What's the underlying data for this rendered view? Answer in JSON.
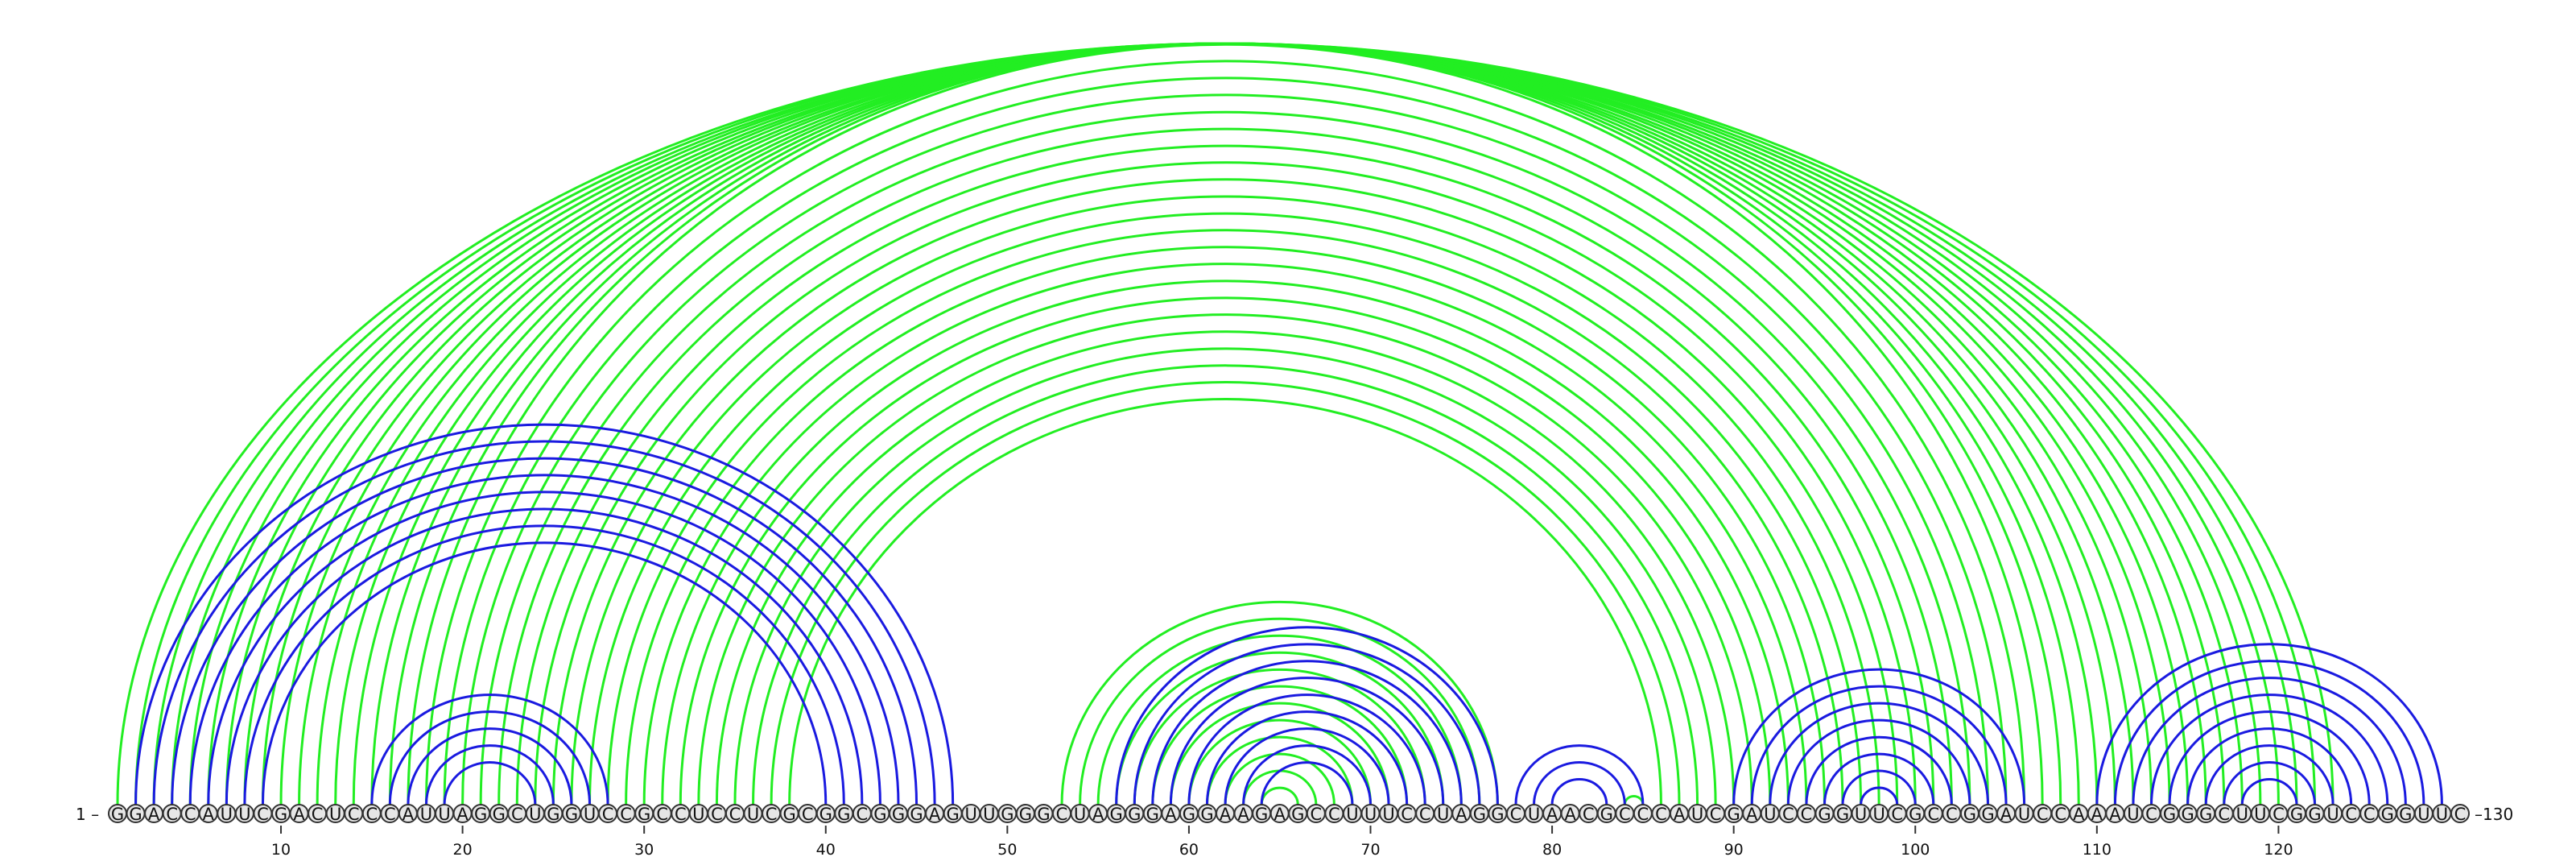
{
  "sequence": "GGACCAUUCGACUCCCAUUAGGCUGGUCCGCCUCCUCGCGGCGGGAGUUGGGCUAGGGAGGAAGAGCCUUUCCUAGGCUAACGCCCAUCGAUCCGGUUCGCCGGAUCCAAAUCGGGCUUCGGUCCGGUUC",
  "start_label": "1",
  "end_label": "130",
  "ticks": [
    "10",
    "20",
    "30",
    "40",
    "50",
    "60",
    "70",
    "80",
    "90",
    "100",
    "110",
    "120"
  ],
  "colors": {
    "blue": "#1a1ae0",
    "green": "#22ee22"
  },
  "arcs": {
    "blue": [
      [
        2,
        47
      ],
      [
        3,
        46
      ],
      [
        4,
        45
      ],
      [
        5,
        44
      ],
      [
        6,
        43
      ],
      [
        7,
        42
      ],
      [
        8,
        41
      ],
      [
        9,
        40
      ],
      [
        15,
        28
      ],
      [
        16,
        27
      ],
      [
        17,
        26
      ],
      [
        18,
        25
      ],
      [
        19,
        24
      ],
      [
        56,
        77
      ],
      [
        57,
        76
      ],
      [
        58,
        75
      ],
      [
        59,
        74
      ],
      [
        60,
        73
      ],
      [
        61,
        72
      ],
      [
        62,
        71
      ],
      [
        63,
        70
      ],
      [
        64,
        69
      ],
      [
        78,
        85
      ],
      [
        79,
        84
      ],
      [
        80,
        83
      ],
      [
        90,
        106
      ],
      [
        91,
        105
      ],
      [
        92,
        104
      ],
      [
        93,
        103
      ],
      [
        94,
        102
      ],
      [
        95,
        101
      ],
      [
        96,
        100
      ],
      [
        97,
        99
      ],
      [
        110,
        129
      ],
      [
        111,
        128
      ],
      [
        112,
        127
      ],
      [
        113,
        126
      ],
      [
        114,
        125
      ],
      [
        115,
        124
      ],
      [
        116,
        123
      ],
      [
        117,
        122
      ],
      [
        118,
        121
      ]
    ],
    "green": [
      [
        1,
        123
      ],
      [
        2,
        122
      ],
      [
        3,
        121
      ],
      [
        4,
        120
      ],
      [
        5,
        119
      ],
      [
        6,
        118
      ],
      [
        7,
        117
      ],
      [
        8,
        116
      ],
      [
        9,
        115
      ],
      [
        10,
        114
      ],
      [
        11,
        113
      ],
      [
        12,
        112
      ],
      [
        13,
        111
      ],
      [
        14,
        110
      ],
      [
        15,
        109
      ],
      [
        16,
        108
      ],
      [
        17,
        107
      ],
      [
        18,
        106
      ],
      [
        19,
        105
      ],
      [
        20,
        104
      ],
      [
        21,
        103
      ],
      [
        22,
        102
      ],
      [
        23,
        101
      ],
      [
        24,
        100
      ],
      [
        25,
        99
      ],
      [
        26,
        98
      ],
      [
        27,
        97
      ],
      [
        28,
        96
      ],
      [
        29,
        95
      ],
      [
        30,
        94
      ],
      [
        31,
        93
      ],
      [
        32,
        92
      ],
      [
        33,
        91
      ],
      [
        34,
        90
      ],
      [
        35,
        89
      ],
      [
        36,
        88
      ],
      [
        37,
        87
      ],
      [
        38,
        86
      ],
      [
        53,
        77
      ],
      [
        54,
        76
      ],
      [
        55,
        75
      ],
      [
        56,
        74
      ],
      [
        57,
        73
      ],
      [
        58,
        72
      ],
      [
        59,
        71
      ],
      [
        60,
        70
      ],
      [
        61,
        69
      ],
      [
        62,
        68
      ],
      [
        63,
        67
      ],
      [
        64,
        66
      ],
      [
        84,
        85
      ]
    ]
  }
}
